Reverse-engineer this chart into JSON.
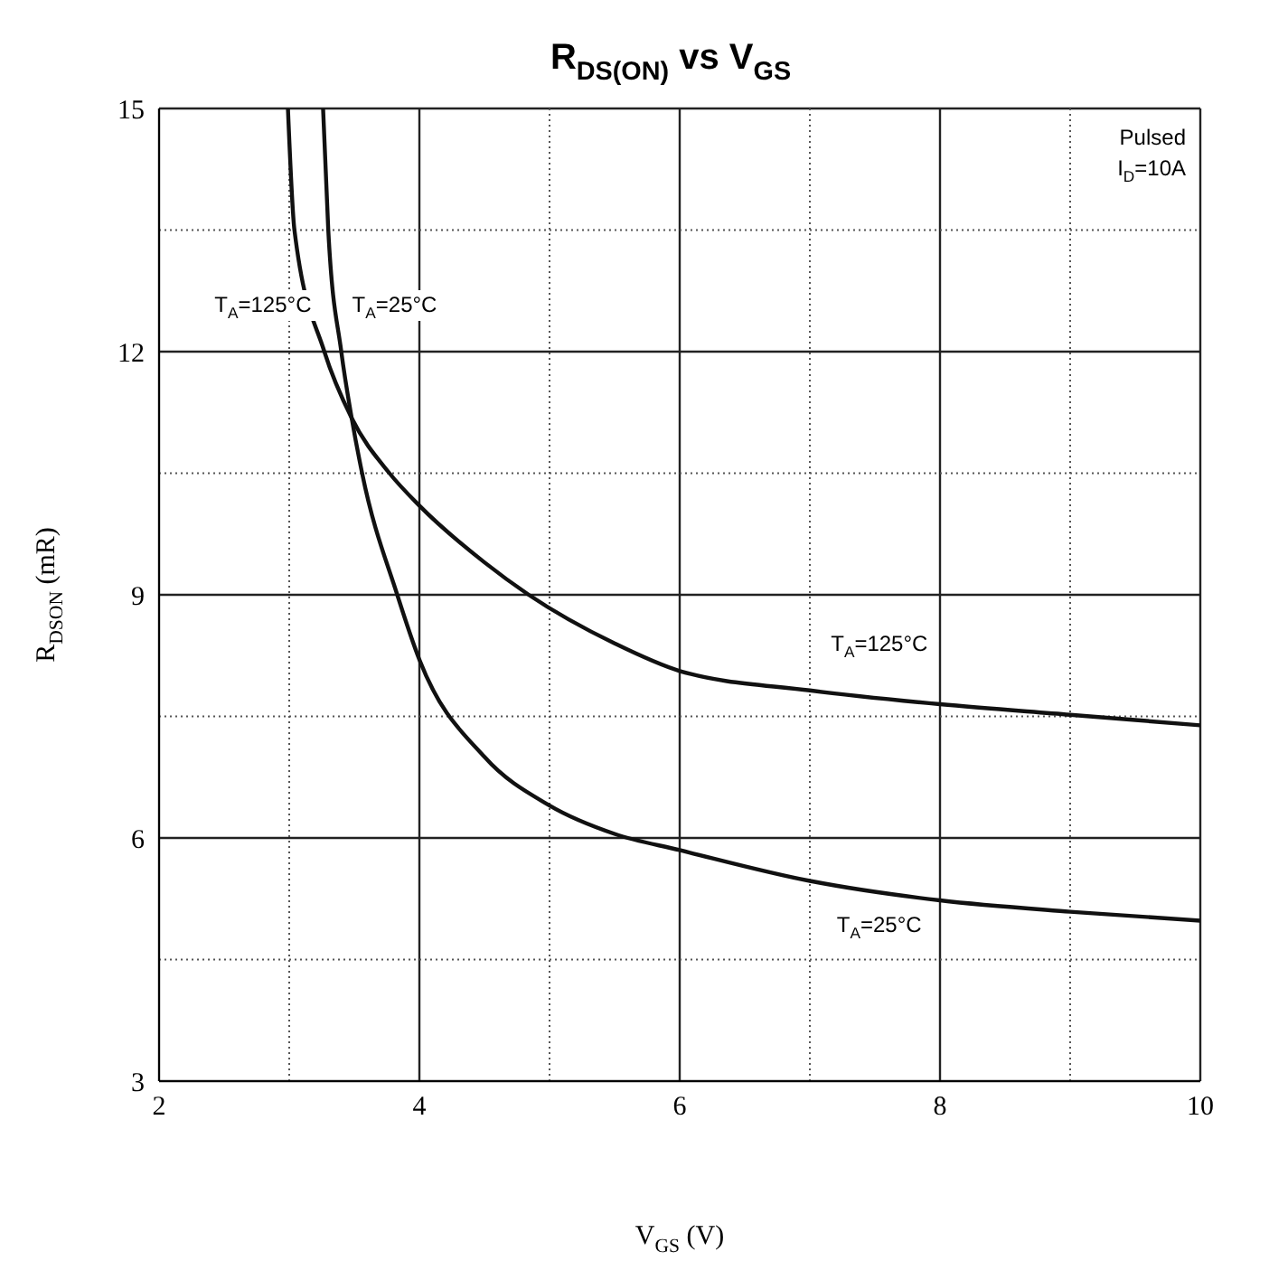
{
  "chart_data": {
    "type": "line",
    "title": "R$_{DS(ON)}$ vs V$_{GS}$",
    "xlabel": "V$_{GS}$ (V)",
    "ylabel": "R$_{DSON}$ (mR)",
    "series": [
      {
        "name": "T$_{A}$=125°C",
        "color": "#111111",
        "x": [
          2.99,
          3.04,
          3.27,
          3.48,
          3.77,
          4,
          4.5,
          4.84,
          5.5,
          6,
          7,
          8,
          9,
          10
        ],
        "values": [
          15,
          13.5,
          12,
          11.18,
          10.5,
          10.1,
          9.4,
          9,
          8.4,
          8.06,
          7.82,
          7.65,
          7.52,
          7.39
        ]
      },
      {
        "name": "T$_{A}$=25°C",
        "color": "#111111",
        "x": [
          3.26,
          3.3,
          3.4,
          3.48,
          3.56,
          3.83,
          4,
          4.5,
          5,
          5.5,
          6,
          7,
          8,
          9,
          10
        ],
        "values": [
          15,
          13.5,
          12,
          11.18,
          10.5,
          9,
          8.2,
          7.0,
          6.4,
          6.05,
          5.85,
          5.47,
          5.23,
          5.09,
          4.98
        ]
      }
    ],
    "xlim": [
      2,
      10
    ],
    "xticks": [
      2,
      {
        "value": 3,
        "label": null
      },
      4,
      {
        "value": 5,
        "label": null
      },
      6,
      {
        "value": 7,
        "label": null
      },
      8,
      {
        "value": 9,
        "label": null
      },
      10
    ],
    "ylim": [
      3,
      15
    ],
    "yticks": [
      3,
      {
        "value": 4.5,
        "label": null
      },
      6,
      {
        "value": 7.5,
        "label": null
      },
      9,
      {
        "value": 10.5,
        "label": null
      },
      12,
      {
        "value": 13.5,
        "label": null
      },
      15
    ],
    "grid": true,
    "marker": "none",
    "line_style": "solid",
    "legend": false,
    "annotations": [
      "Pulsed",
      "I$_{D}$=10A"
    ]
  }
}
